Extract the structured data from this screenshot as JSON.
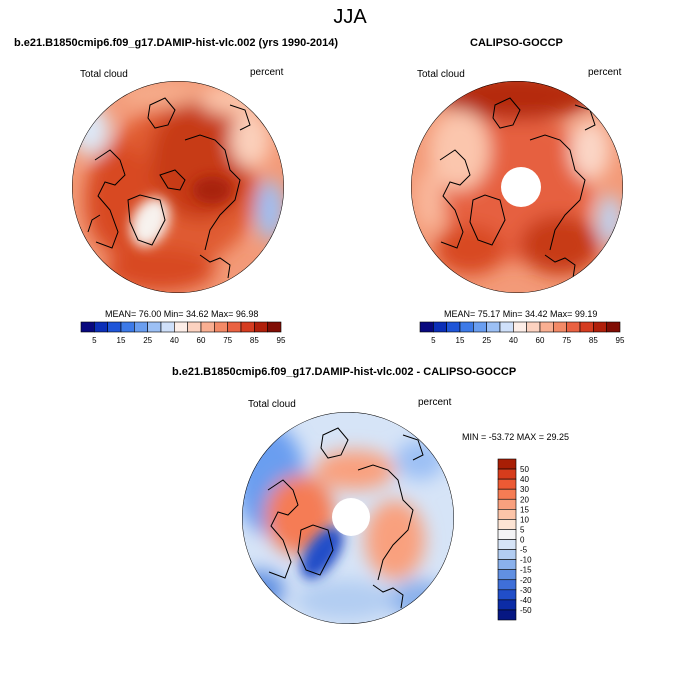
{
  "title": "JJA",
  "panels": [
    {
      "title": "b.e21.B1850cmip6.f09_g17.DAMIP-hist-vlc.002 (yrs 1990-2014)",
      "left_label": "Total cloud",
      "right_label": "percent",
      "stats": "MEAN=  76.00  Min=  34.62  Max=  96.98"
    },
    {
      "title": "CALIPSO-GOCCP",
      "left_label": "Total cloud",
      "right_label": "percent",
      "stats": "MEAN=  75.17  Min=  34.42  Max=  99.19"
    },
    {
      "title": "b.e21.B1850cmip6.f09_g17.DAMIP-hist-vlc.002 - CALIPSO-GOCCP",
      "left_label": "Total cloud",
      "right_label": "percent",
      "stats": "MIN = -53.72 MAX =  29.25"
    }
  ],
  "colorbar_top": {
    "colors": [
      "#08087e",
      "#0b2fb8",
      "#1f55d8",
      "#3d7ae8",
      "#6a9ef0",
      "#9cc0f5",
      "#cfe0fa",
      "#fdeee8",
      "#fcd2c0",
      "#f9af92",
      "#f38a67",
      "#ea6242",
      "#d53c20",
      "#b01f0a",
      "#800d04"
    ],
    "labels": [
      "5",
      "15",
      "25",
      "40",
      "60",
      "75",
      "85",
      "95"
    ]
  },
  "colorbar_diff": {
    "colors": [
      "#a81e05",
      "#d63c1c",
      "#ec5a34",
      "#f57c54",
      "#f9a07e",
      "#fcc4a8",
      "#fde4d4",
      "#f4f4f6",
      "#d6e4f7",
      "#b2cdf2",
      "#8ab1ec",
      "#6190e2",
      "#3f6fd8",
      "#214ec8",
      "#0c2ca6",
      "#061783"
    ],
    "labels": [
      "50",
      "40",
      "30",
      "20",
      "15",
      "10",
      "5",
      "0",
      "-5",
      "-10",
      "-15",
      "-20",
      "-30",
      "-40",
      "-50"
    ]
  },
  "chart_data": [
    {
      "type": "heatmap",
      "title": "b.e21.B1850cmip6.f09_g17.DAMIP-hist-vlc.002 (yrs 1990-2014)",
      "variable": "Total cloud",
      "units": "percent",
      "projection": "north polar stereographic",
      "contour_levels": [
        5,
        15,
        25,
        40,
        60,
        75,
        85,
        95
      ],
      "mean": 76.0,
      "min": 34.62,
      "max": 96.98
    },
    {
      "type": "heatmap",
      "title": "CALIPSO-GOCCP",
      "variable": "Total cloud",
      "units": "percent",
      "projection": "north polar stereographic",
      "contour_levels": [
        5,
        15,
        25,
        40,
        60,
        75,
        85,
        95
      ],
      "mean": 75.17,
      "min": 34.42,
      "max": 99.19
    },
    {
      "type": "heatmap",
      "title": "b.e21.B1850cmip6.f09_g17.DAMIP-hist-vlc.002 - CALIPSO-GOCCP",
      "variable": "Total cloud",
      "units": "percent",
      "projection": "north polar stereographic",
      "contour_levels": [
        -50,
        -40,
        -30,
        -20,
        -15,
        -10,
        -5,
        0,
        5,
        10,
        15,
        20,
        30,
        40,
        50
      ],
      "min": -53.72,
      "max": 29.25
    }
  ]
}
